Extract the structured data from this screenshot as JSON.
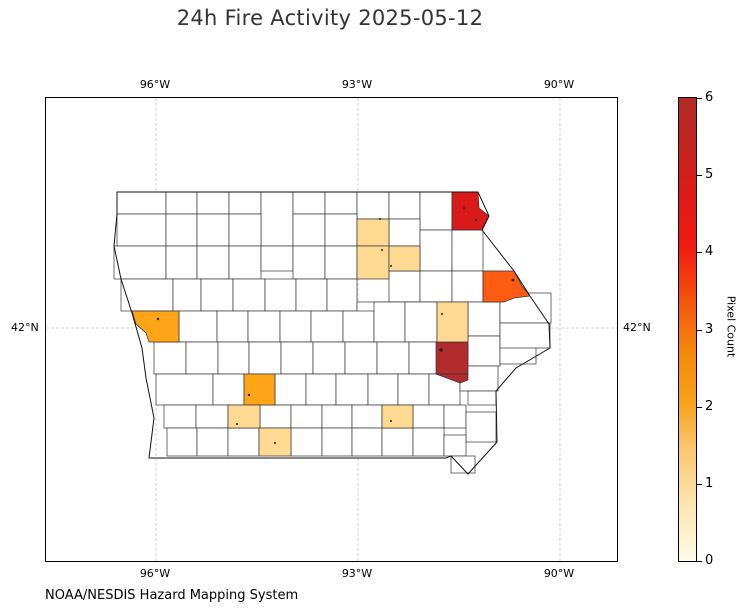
{
  "title": "24h Fire Activity 2025-05-12",
  "credit": "NOAA/NESDIS Hazard Mapping System",
  "colorbar": {
    "label": "Pixel Count",
    "ticks": [
      "0",
      "1",
      "2",
      "3",
      "4",
      "5",
      "6"
    ],
    "min": 0,
    "max": 6
  },
  "axes": {
    "lon_ticks_top": [
      "96°W",
      "93°W",
      "90°W"
    ],
    "lon_ticks_bottom": [
      "96°W",
      "93°W",
      "90°W"
    ],
    "lat_tick_left": "42°N",
    "lat_tick_right": "42°N",
    "extent": {
      "lon_min": -97.65,
      "lon_max": -89.15,
      "lat_min": 39.65,
      "lat_max": 44.7
    },
    "gridlines": true
  },
  "colors": {
    "count_1": "#fdd992",
    "count_2": "#fda516",
    "count_3": "#fd5a12",
    "count_5": "#d9191a",
    "count_6": "#b22c2d"
  },
  "counties_with_fires": [
    {
      "position": "northeast corner",
      "count": 5
    },
    {
      "position": "east, Mississippi bend",
      "count": 3
    },
    {
      "position": "east-central",
      "count": 6
    },
    {
      "position": "east-central, north of the 6-count county",
      "count": 1
    },
    {
      "position": "north-central",
      "count": 1
    },
    {
      "position": "north-central, second",
      "count": 1
    },
    {
      "position": "west edge",
      "count": 2
    },
    {
      "position": "southwest-central",
      "count": 2
    },
    {
      "position": "southwest",
      "count": 1
    },
    {
      "position": "southwest, second",
      "count": 1
    },
    {
      "position": "south-central",
      "count": 1
    }
  ]
}
